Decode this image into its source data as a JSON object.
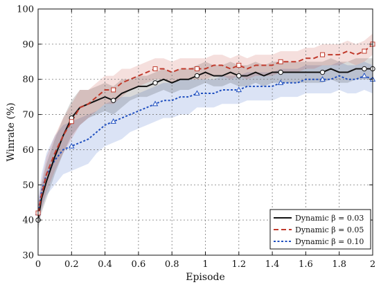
{
  "chart_data": {
    "type": "line",
    "xlabel": "Episode",
    "ylabel": "Winrate (%)",
    "xlim": [
      0,
      2
    ],
    "ylim": [
      30,
      100
    ],
    "x_ticks": [
      0,
      0.2,
      0.4,
      0.6,
      0.8,
      1,
      1.2,
      1.4,
      1.6,
      1.8,
      2
    ],
    "x_tick_labels": [
      "0",
      "0.2",
      "0.4",
      "0.6",
      "0.8",
      "1",
      "1.2",
      "1.4",
      "1.6",
      "1.8",
      "2"
    ],
    "y_ticks": [
      30,
      40,
      50,
      60,
      70,
      80,
      90,
      100
    ],
    "y_tick_labels": [
      "30",
      "40",
      "50",
      "60",
      "70",
      "80",
      "90",
      "100"
    ],
    "grid": true,
    "legend_position": "bottom-right",
    "x": [
      0,
      0.02,
      0.05,
      0.1,
      0.15,
      0.2,
      0.25,
      0.3,
      0.35,
      0.4,
      0.45,
      0.5,
      0.55,
      0.6,
      0.65,
      0.7,
      0.75,
      0.8,
      0.85,
      0.9,
      0.95,
      1.0,
      1.05,
      1.1,
      1.15,
      1.2,
      1.25,
      1.3,
      1.35,
      1.4,
      1.45,
      1.5,
      1.55,
      1.6,
      1.65,
      1.7,
      1.75,
      1.8,
      1.85,
      1.9,
      1.95,
      2.0
    ],
    "series": [
      {
        "name": "Dynamic β = 0.03",
        "color": "#111111",
        "dash": "solid",
        "marker": "circle",
        "values": [
          40,
          46,
          51,
          58,
          64,
          69,
          72,
          73,
          74,
          75,
          74,
          76,
          77,
          78,
          78,
          79,
          80,
          79,
          80,
          80,
          81,
          82,
          81,
          81,
          82,
          81,
          81,
          82,
          81,
          82,
          82,
          82,
          82,
          82,
          82,
          82,
          83,
          82,
          82,
          83,
          83,
          83
        ],
        "band": [
          3,
          4,
          5,
          5,
          5,
          5,
          5,
          4,
          4,
          4,
          4,
          4,
          3,
          3,
          3,
          3,
          3,
          3,
          3,
          3,
          3,
          3,
          3,
          3,
          3,
          3,
          3,
          3,
          3,
          3,
          3,
          3,
          3,
          3,
          3,
          3,
          3,
          3,
          3,
          3,
          3,
          3
        ]
      },
      {
        "name": "Dynamic β = 0.05",
        "color": "#c0392b",
        "dash": "dashed",
        "marker": "square",
        "values": [
          42,
          47,
          53,
          59,
          64,
          68,
          72,
          73,
          75,
          77,
          77,
          79,
          80,
          81,
          82,
          83,
          83,
          82,
          83,
          83,
          83,
          83,
          84,
          84,
          83,
          84,
          83,
          84,
          84,
          84,
          85,
          85,
          85,
          86,
          86,
          87,
          87,
          87,
          88,
          87,
          88,
          90
        ],
        "band": [
          3,
          4,
          5,
          5,
          5,
          5,
          5,
          4,
          4,
          4,
          4,
          4,
          3,
          3,
          3,
          3,
          3,
          3,
          3,
          3,
          3,
          3,
          3,
          3,
          3,
          3,
          3,
          3,
          3,
          3,
          3,
          3,
          3,
          3,
          3,
          3,
          3,
          3,
          3,
          3,
          3,
          3
        ]
      },
      {
        "name": "Dynamic β = 0.10",
        "color": "#1f4fbf",
        "dash": "dotted",
        "marker": "triangle",
        "values": [
          42,
          48,
          53,
          57,
          60,
          61,
          62,
          63,
          65,
          67,
          68,
          69,
          70,
          71,
          72,
          73,
          74,
          74,
          75,
          75,
          76,
          76,
          76,
          77,
          77,
          77,
          78,
          78,
          78,
          78,
          79,
          79,
          79,
          80,
          80,
          80,
          80,
          81,
          80,
          80,
          81,
          80
        ],
        "band": [
          4,
          5,
          6,
          7,
          7,
          7,
          7,
          7,
          6,
          6,
          6,
          6,
          5,
          5,
          5,
          5,
          5,
          5,
          5,
          5,
          4,
          4,
          4,
          4,
          4,
          4,
          4,
          4,
          4,
          4,
          4,
          4,
          4,
          4,
          4,
          4,
          4,
          4,
          4,
          4,
          4,
          4
        ]
      }
    ]
  }
}
